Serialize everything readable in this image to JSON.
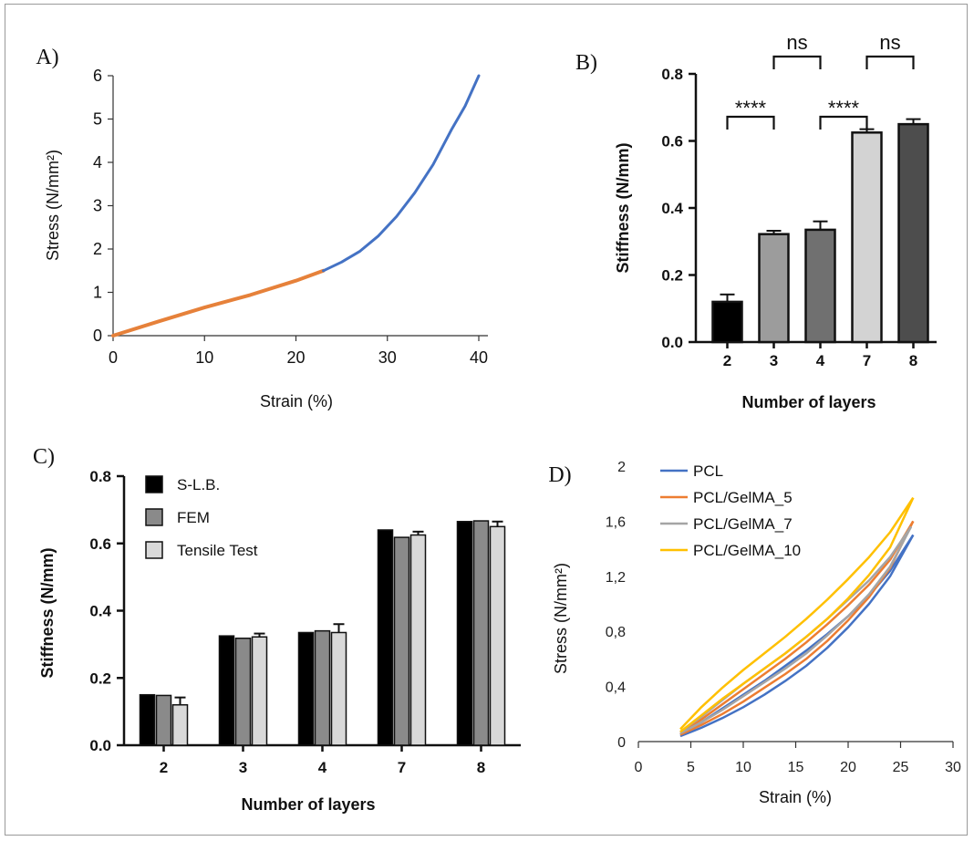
{
  "chart_data": [
    {
      "type": "line",
      "panel_label": "A)",
      "xlabel": "Strain (%)",
      "ylabel": "Stress (N/mm²)",
      "xlim": [
        0,
        40
      ],
      "ylim": [
        0,
        6
      ],
      "x_ticks": [
        "0",
        "10",
        "20",
        "30",
        "40"
      ],
      "y_ticks": [
        "0",
        "1",
        "2",
        "3",
        "4",
        "5",
        "6"
      ],
      "colors": {
        "fit": "#e6813a",
        "curve": "#4472c4"
      },
      "series": [
        {
          "color": "#e6813a",
          "x": [
            0,
            5,
            10,
            15,
            20,
            23
          ],
          "y": [
            0,
            0.33,
            0.65,
            0.94,
            1.27,
            1.5
          ]
        },
        {
          "color": "#4472c4",
          "x": [
            23,
            25,
            27,
            29,
            31,
            33,
            35,
            37,
            38.5,
            40
          ],
          "y": [
            1.5,
            1.7,
            1.95,
            2.3,
            2.75,
            3.3,
            3.95,
            4.75,
            5.3,
            6.0
          ]
        }
      ]
    },
    {
      "type": "bar",
      "panel_label": "B)",
      "xlabel": "Number of layers",
      "ylabel": "Stiffness (N/mm)",
      "ylim": [
        0,
        0.8
      ],
      "y_ticks": [
        "0.0",
        "0.2",
        "0.4",
        "0.6",
        "0.8"
      ],
      "categories": [
        "2",
        "3",
        "4",
        "7",
        "8"
      ],
      "values": [
        0.12,
        0.322,
        0.335,
        0.625,
        0.65
      ],
      "errors": [
        0.022,
        0.01,
        0.025,
        0.01,
        0.015
      ],
      "colors": [
        "#000000",
        "#9c9c9c",
        "#707070",
        "#d3d3d3",
        "#4d4d4d"
      ],
      "significance": [
        {
          "from": "2",
          "to": "3",
          "label": "****"
        },
        {
          "from": "3",
          "to": "4",
          "label": "ns"
        },
        {
          "from": "4",
          "to": "7",
          "label": "****"
        },
        {
          "from": "7",
          "to": "8",
          "label": "ns"
        }
      ]
    },
    {
      "type": "bar",
      "panel_label": "C)",
      "xlabel": "Number of layers",
      "ylabel": "Stiffness (N/mm)",
      "ylim": [
        0,
        0.8
      ],
      "y_ticks": [
        "0.0",
        "0.2",
        "0.4",
        "0.6",
        "0.8"
      ],
      "categories": [
        "2",
        "3",
        "4",
        "7",
        "8"
      ],
      "legend_position": "top-left",
      "series": [
        {
          "name": "S-L.B.",
          "color": "#000000",
          "values": [
            0.15,
            0.325,
            0.335,
            0.64,
            0.665
          ],
          "errors": [
            0,
            0,
            0,
            0,
            0
          ]
        },
        {
          "name": "FEM",
          "color": "#8a8a8a",
          "values": [
            0.148,
            0.318,
            0.34,
            0.618,
            0.667
          ],
          "errors": [
            0,
            0,
            0,
            0,
            0
          ]
        },
        {
          "name": "Tensile Test",
          "color": "#d9d9d9",
          "values": [
            0.12,
            0.322,
            0.335,
            0.625,
            0.65
          ],
          "errors": [
            0.022,
            0.01,
            0.025,
            0.01,
            0.015
          ]
        }
      ]
    },
    {
      "type": "line",
      "panel_label": "D)",
      "xlabel": "Strain (%)",
      "ylabel": "Stress (N/mm²)",
      "xlim": [
        0,
        30
      ],
      "ylim": [
        0,
        2
      ],
      "x_ticks": [
        "0",
        "5",
        "10",
        "15",
        "20",
        "25",
        "30"
      ],
      "y_ticks": [
        "0",
        "0,4",
        "0,8",
        "1,2",
        "1,6",
        "2"
      ],
      "legend_position": "top-left",
      "series": [
        {
          "name": "PCL",
          "color": "#4472c4",
          "x": [
            4,
            6,
            8,
            10,
            12,
            14,
            16,
            18,
            20,
            22,
            24,
            26.2
          ],
          "load": [
            0.05,
            0.14,
            0.24,
            0.34,
            0.44,
            0.55,
            0.66,
            0.78,
            0.91,
            1.06,
            1.24,
            1.5
          ],
          "unload": [
            0.04,
            0.1,
            0.17,
            0.25,
            0.34,
            0.44,
            0.55,
            0.68,
            0.83,
            1.0,
            1.2,
            1.5
          ]
        },
        {
          "name": "PCL/GelMA_5",
          "color": "#ed7d31",
          "x": [
            4,
            6,
            8,
            10,
            12,
            14,
            16,
            18,
            20,
            22,
            24,
            26.2
          ],
          "load": [
            0.06,
            0.16,
            0.27,
            0.38,
            0.49,
            0.6,
            0.72,
            0.85,
            0.99,
            1.14,
            1.32,
            1.6
          ],
          "unload": [
            0.05,
            0.12,
            0.2,
            0.29,
            0.39,
            0.49,
            0.6,
            0.73,
            0.88,
            1.05,
            1.26,
            1.6
          ]
        },
        {
          "name": "PCL/GelMA_7",
          "color": "#a5a5a5",
          "x": [
            4,
            6,
            8,
            10,
            12,
            14,
            16,
            18,
            20,
            22,
            24,
            26.0
          ],
          "load": [
            0.07,
            0.18,
            0.3,
            0.42,
            0.53,
            0.64,
            0.76,
            0.89,
            1.03,
            1.17,
            1.34,
            1.56
          ],
          "unload": [
            0.06,
            0.14,
            0.23,
            0.33,
            0.43,
            0.53,
            0.64,
            0.77,
            0.91,
            1.07,
            1.27,
            1.56
          ]
        },
        {
          "name": "PCL/GelMA_10",
          "color": "#ffc000",
          "x": [
            4,
            6,
            8,
            10,
            12,
            14,
            16,
            18,
            20,
            22,
            24,
            26.2
          ],
          "load": [
            0.09,
            0.25,
            0.39,
            0.52,
            0.64,
            0.76,
            0.89,
            1.03,
            1.18,
            1.34,
            1.52,
            1.77
          ],
          "unload": [
            0.07,
            0.19,
            0.31,
            0.42,
            0.53,
            0.64,
            0.76,
            0.89,
            1.04,
            1.21,
            1.41,
            1.77
          ]
        }
      ]
    }
  ]
}
